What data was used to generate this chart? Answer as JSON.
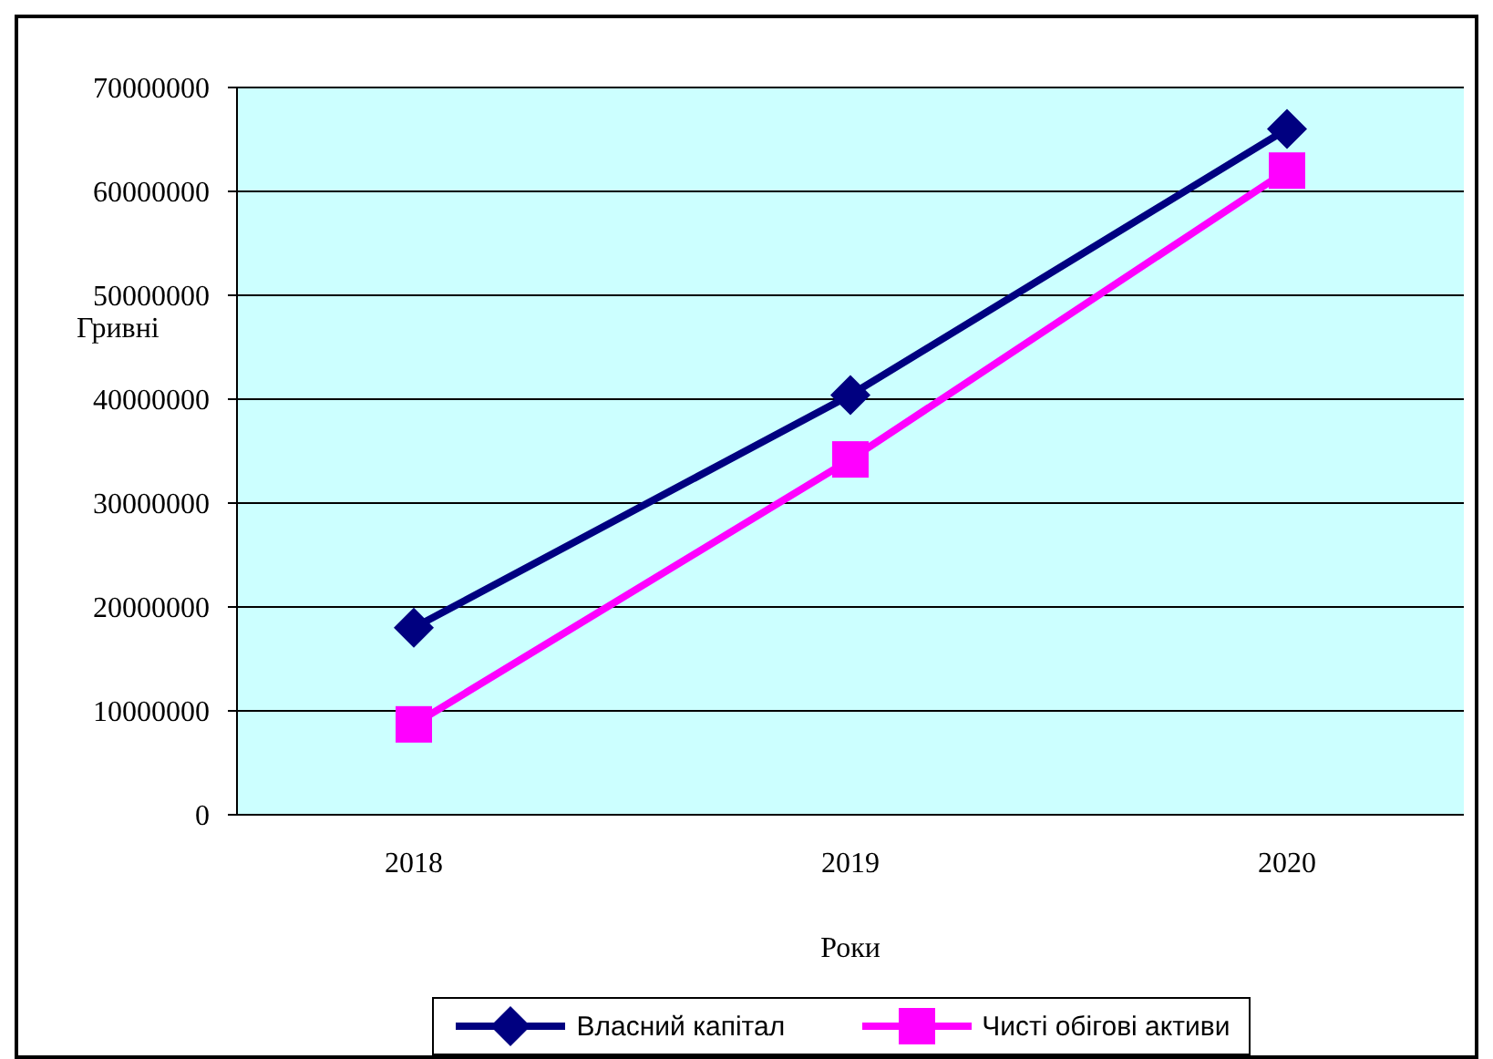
{
  "chart_data": {
    "type": "line",
    "xlabel": "Роки",
    "ylabel": "Гривні",
    "categories": [
      "2018",
      "2019",
      "2020"
    ],
    "series": [
      {
        "name": "Власний капітал",
        "color": "#000080",
        "values": [
          18000000,
          40400000,
          66000000
        ],
        "marker": "diamond"
      },
      {
        "name": "Чисті обігові активи",
        "color": "#ff00ff",
        "values": [
          8700000,
          34200000,
          62000000
        ],
        "marker": "square"
      }
    ],
    "ylim": [
      0,
      70000000
    ],
    "yticks": [
      0,
      10000000,
      20000000,
      30000000,
      40000000,
      50000000,
      60000000,
      70000000
    ],
    "grid": "y",
    "legend": "bottom",
    "marker": "diamond",
    "line_style": "solid"
  }
}
